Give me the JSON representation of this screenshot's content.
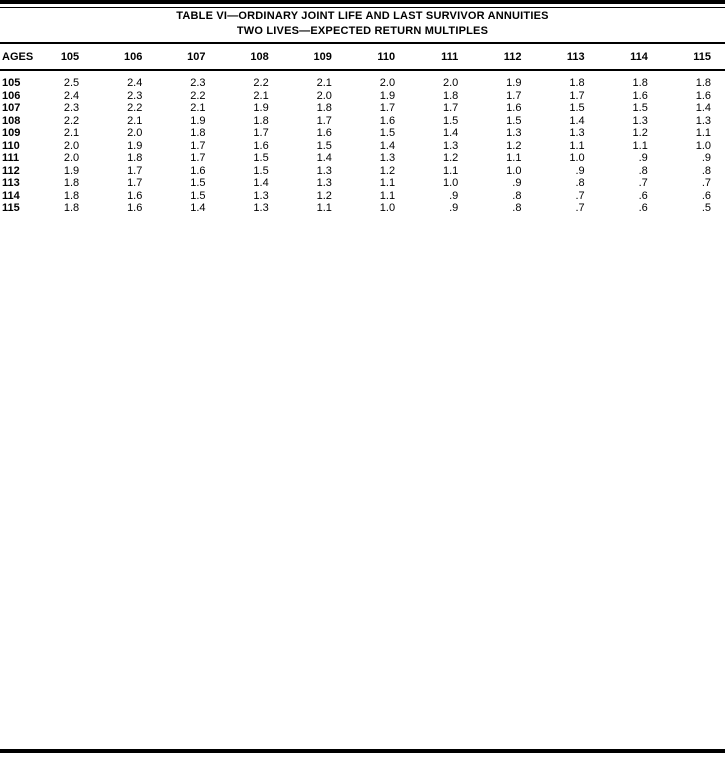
{
  "page": {
    "title_line1": "TABLE VI—ORDINARY JOINT LIFE AND LAST SURVIVOR ANNUITIES",
    "title_line2": "TWO LIVES—EXPECTED RETURN MULTIPLES"
  },
  "table": {
    "age_header": "AGES",
    "column_headers": [
      "105",
      "106",
      "107",
      "108",
      "109",
      "110",
      "111",
      "112",
      "113",
      "114",
      "115"
    ],
    "rows": [
      {
        "age": "105",
        "values": [
          "2.5",
          "2.4",
          "2.3",
          "2.2",
          "2.1",
          "2.0",
          "2.0",
          "1.9",
          "1.8",
          "1.8",
          "1.8"
        ]
      },
      {
        "age": "106",
        "values": [
          "2.4",
          "2.3",
          "2.2",
          "2.1",
          "2.0",
          "1.9",
          "1.8",
          "1.7",
          "1.7",
          "1.6",
          "1.6"
        ]
      },
      {
        "age": "107",
        "values": [
          "2.3",
          "2.2",
          "2.1",
          "1.9",
          "1.8",
          "1.7",
          "1.7",
          "1.6",
          "1.5",
          "1.5",
          "1.4"
        ]
      },
      {
        "age": "108",
        "values": [
          "2.2",
          "2.1",
          "1.9",
          "1.8",
          "1.7",
          "1.6",
          "1.5",
          "1.5",
          "1.4",
          "1.3",
          "1.3"
        ]
      },
      {
        "age": "109",
        "values": [
          "2.1",
          "2.0",
          "1.8",
          "1.7",
          "1.6",
          "1.5",
          "1.4",
          "1.3",
          "1.3",
          "1.2",
          "1.1"
        ]
      },
      {
        "age": "110",
        "values": [
          "2.0",
          "1.9",
          "1.7",
          "1.6",
          "1.5",
          "1.4",
          "1.3",
          "1.2",
          "1.1",
          "1.1",
          "1.0"
        ]
      },
      {
        "age": "111",
        "values": [
          "2.0",
          "1.8",
          "1.7",
          "1.5",
          "1.4",
          "1.3",
          "1.2",
          "1.1",
          "1.0",
          ".9",
          ".9"
        ]
      },
      {
        "age": "112",
        "values": [
          "1.9",
          "1.7",
          "1.6",
          "1.5",
          "1.3",
          "1.2",
          "1.1",
          "1.0",
          ".9",
          ".8",
          ".8"
        ]
      },
      {
        "age": "113",
        "values": [
          "1.8",
          "1.7",
          "1.5",
          "1.4",
          "1.3",
          "1.1",
          "1.0",
          ".9",
          ".8",
          ".7",
          ".7"
        ]
      },
      {
        "age": "114",
        "values": [
          "1.8",
          "1.6",
          "1.5",
          "1.3",
          "1.2",
          "1.1",
          ".9",
          ".8",
          ".7",
          ".6",
          ".6"
        ]
      },
      {
        "age": "115",
        "values": [
          "1.8",
          "1.6",
          "1.4",
          "1.3",
          "1.1",
          "1.0",
          ".9",
          ".8",
          ".7",
          ".6",
          ".5"
        ]
      }
    ]
  },
  "colors": {
    "ink": "#000000",
    "paper": "#ffffff"
  }
}
